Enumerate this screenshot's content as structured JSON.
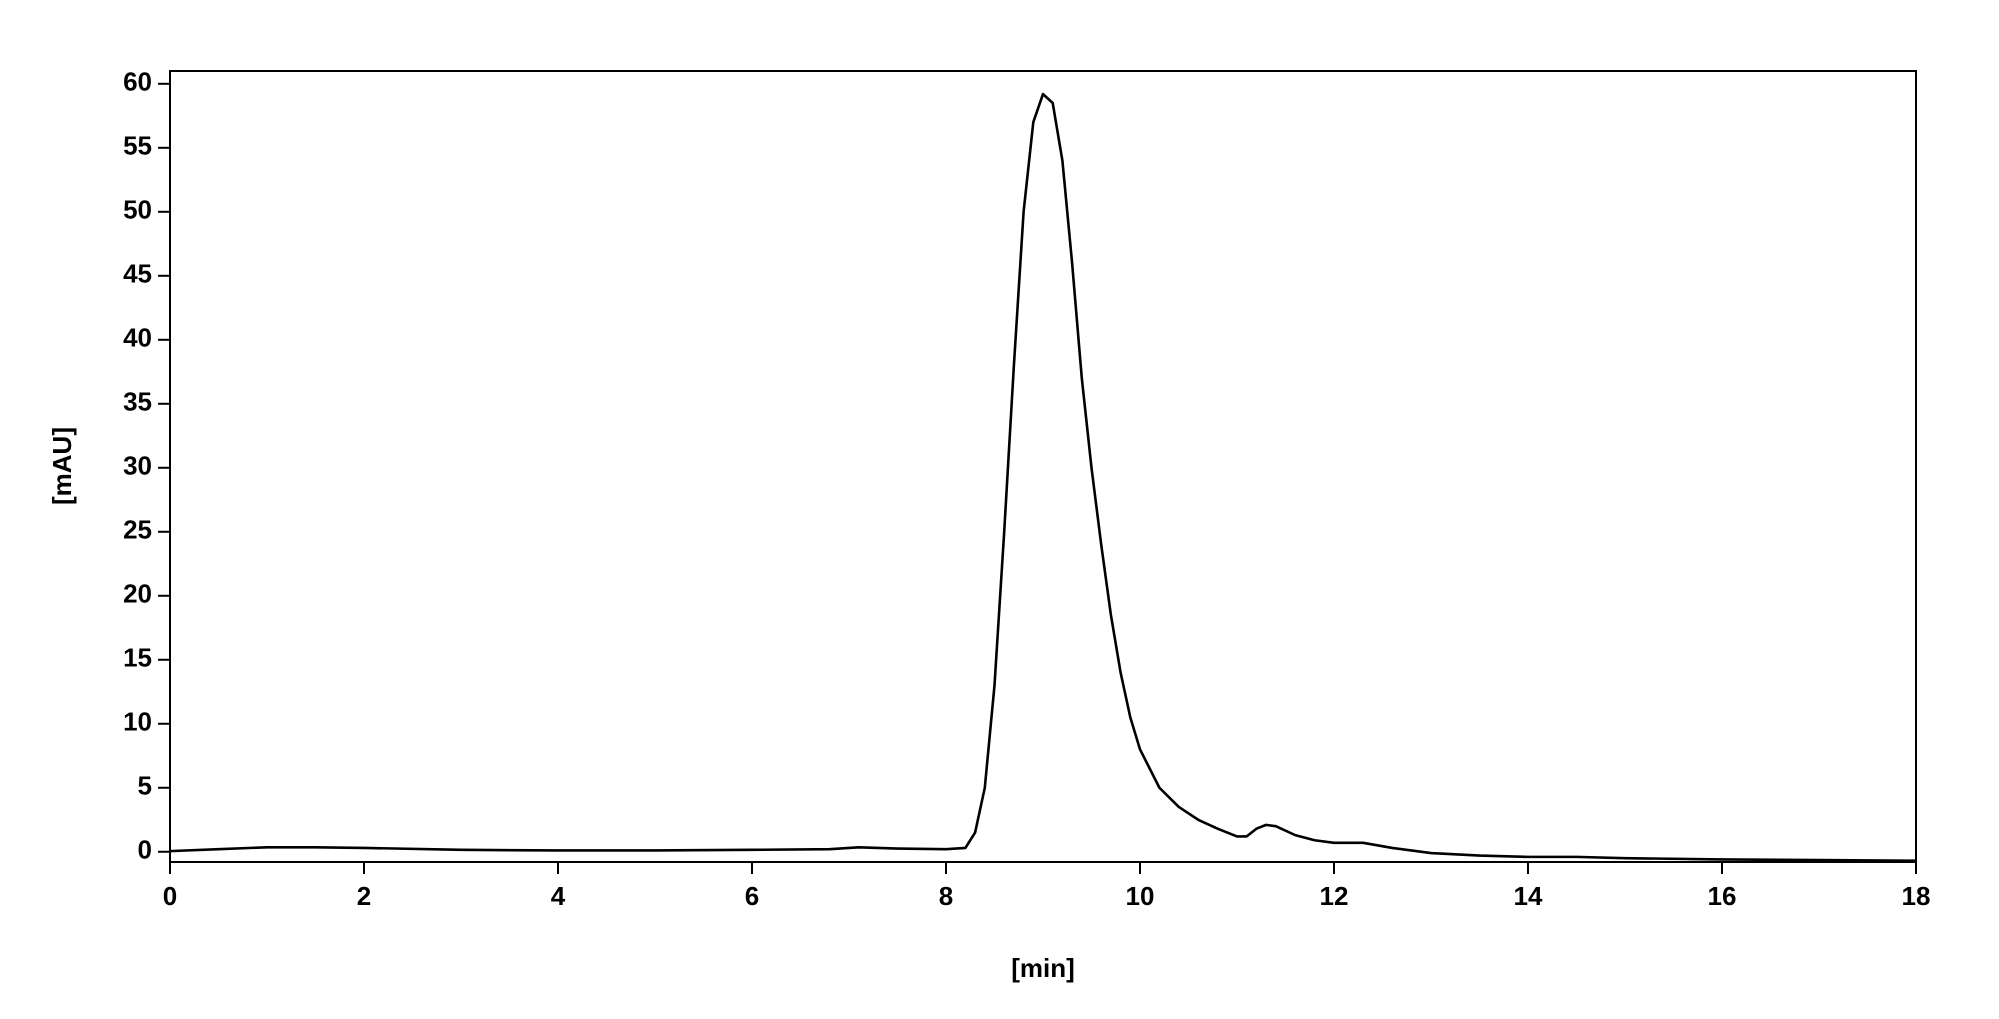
{
  "chart_data": {
    "type": "line",
    "x_label": "[min]",
    "y_label": "[mAU]",
    "xlim": [
      0,
      18
    ],
    "xticks": [
      0,
      2,
      4,
      6,
      8,
      10,
      12,
      14,
      16,
      18
    ],
    "ylim": [
      -0.8,
      61
    ],
    "yticks": [
      0,
      5,
      10,
      15,
      20,
      25,
      30,
      35,
      40,
      45,
      50,
      55,
      60
    ],
    "grid": false,
    "series": [
      {
        "color": "#000000",
        "x": [
          0,
          0.5,
          1,
          1.5,
          2,
          3,
          4,
          5,
          6,
          6.8,
          7.1,
          7.5,
          8,
          8.2,
          8.3,
          8.4,
          8.5,
          8.6,
          8.7,
          8.8,
          8.9,
          9.0,
          9.1,
          9.2,
          9.3,
          9.4,
          9.5,
          9.6,
          9.7,
          9.8,
          9.9,
          10,
          10.2,
          10.4,
          10.6,
          10.8,
          11,
          11.1,
          11.2,
          11.3,
          11.4,
          11.6,
          11.8,
          12,
          12.3,
          12.6,
          13,
          13.5,
          14,
          14.5,
          15,
          16,
          17,
          18
        ],
        "values": [
          0.05,
          0.2,
          0.35,
          0.35,
          0.3,
          0.15,
          0.1,
          0.1,
          0.15,
          0.2,
          0.35,
          0.25,
          0.2,
          0.3,
          1.5,
          5,
          13,
          25,
          38,
          50,
          57,
          59.2,
          58.5,
          54,
          46,
          37,
          30,
          24,
          18.5,
          14,
          10.5,
          8,
          5,
          3.5,
          2.5,
          1.8,
          1.2,
          1.2,
          1.8,
          2.1,
          2.0,
          1.3,
          0.9,
          0.7,
          0.7,
          0.3,
          -0.1,
          -0.3,
          -0.4,
          -0.4,
          -0.5,
          -0.6,
          -0.65,
          -0.7
        ]
      }
    ]
  }
}
